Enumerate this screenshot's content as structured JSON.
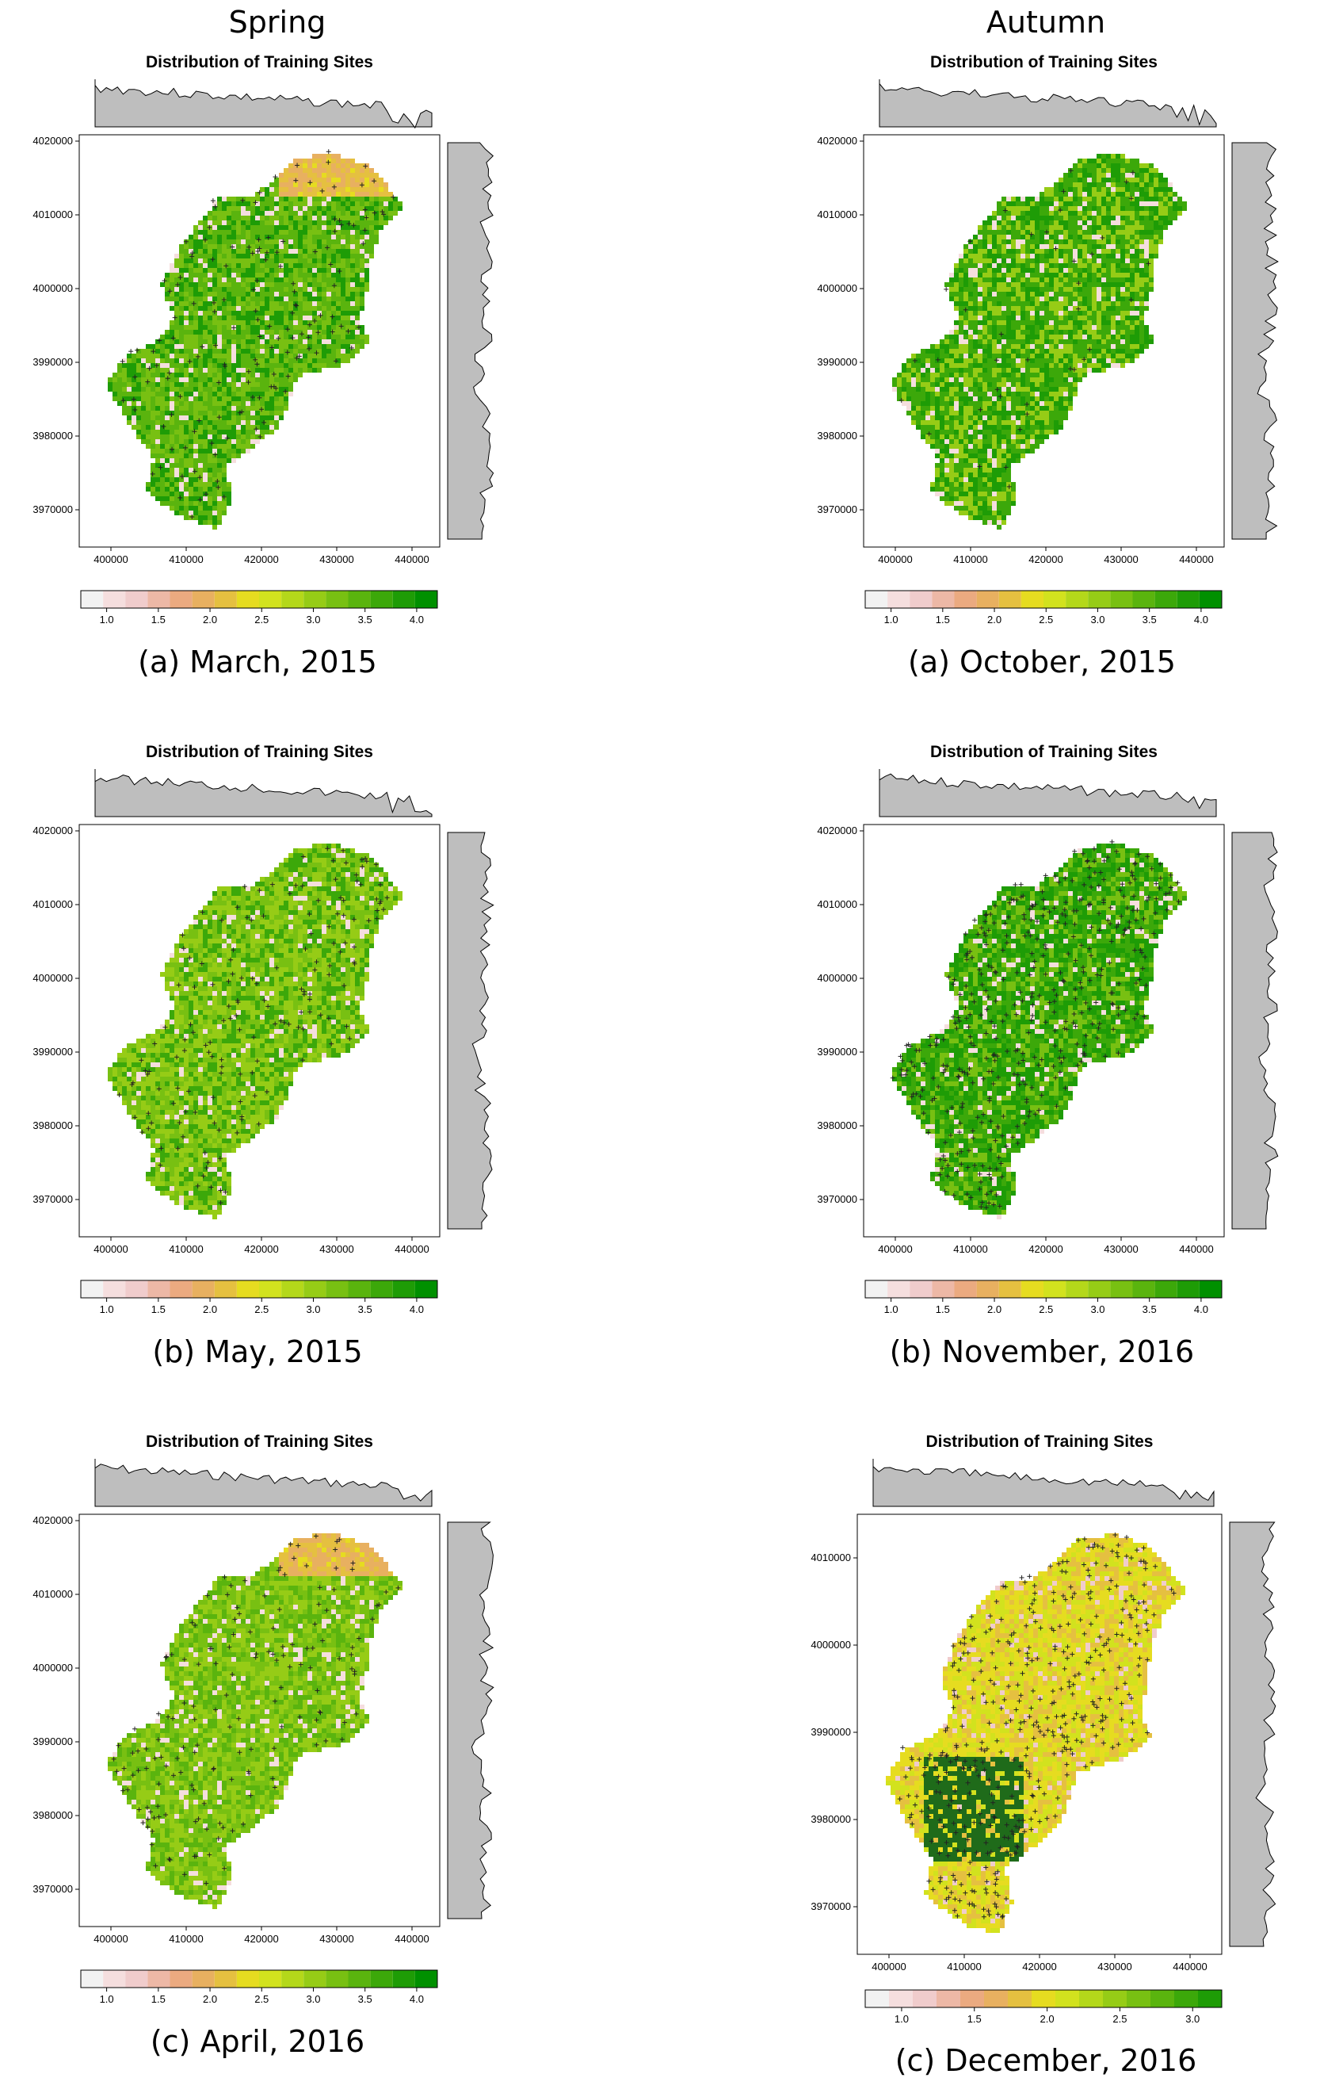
{
  "column_headings": [
    "Spring",
    "Autumn"
  ],
  "chart_data": [
    {
      "type": "heatmap",
      "title": "Distribution of Training Sites",
      "caption": "(a) March, 2015",
      "xticks": [
        "400000",
        "410000",
        "420000",
        "430000",
        "440000"
      ],
      "yticks": [
        "4020000",
        "4010000",
        "4000000",
        "3990000",
        "3980000",
        "3970000"
      ],
      "legend": {
        "ticks": [
          "1.0",
          "1.5",
          "2.0",
          "2.5",
          "3.0",
          "3.5",
          "4.0"
        ],
        "min": 0.75,
        "max": 4.2
      },
      "dominant_values": [
        3.6,
        3.2,
        4.0
      ],
      "highlight": "north-east",
      "marker": "+",
      "points_density": "medium"
    },
    {
      "type": "heatmap",
      "title": "Distribution of Training Sites",
      "caption": "(a) October, 2015",
      "xticks": [
        "400000",
        "410000",
        "420000",
        "430000",
        "440000"
      ],
      "yticks": [
        "4020000",
        "4010000",
        "4000000",
        "3990000",
        "3980000",
        "3970000"
      ],
      "legend": {
        "ticks": [
          "1.0",
          "1.5",
          "2.0",
          "2.5",
          "3.0",
          "3.5",
          "4.0"
        ],
        "min": 0.75,
        "max": 4.2
      },
      "dominant_values": [
        3.8,
        3.0,
        4.0
      ],
      "highlight": "none",
      "marker": "+",
      "points_density": "low"
    },
    {
      "type": "heatmap",
      "title": "Distribution of Training Sites",
      "caption": "(b) May, 2015",
      "xticks": [
        "400000",
        "410000",
        "420000",
        "430000",
        "440000"
      ],
      "yticks": [
        "4020000",
        "4010000",
        "4000000",
        "3990000",
        "3980000",
        "3970000"
      ],
      "legend": {
        "ticks": [
          "1.0",
          "1.5",
          "2.0",
          "2.5",
          "3.0",
          "3.5",
          "4.0"
        ],
        "min": 0.75,
        "max": 4.2
      },
      "dominant_values": [
        3.0,
        3.3,
        3.8
      ],
      "highlight": "none",
      "marker": "+",
      "points_density": "medium"
    },
    {
      "type": "heatmap",
      "title": "Distribution of Training Sites",
      "caption": "(b) November, 2016",
      "xticks": [
        "400000",
        "410000",
        "420000",
        "430000",
        "440000"
      ],
      "yticks": [
        "4020000",
        "4010000",
        "4000000",
        "3990000",
        "3980000",
        "3970000"
      ],
      "legend": {
        "ticks": [
          "1.0",
          "1.5",
          "2.0",
          "2.5",
          "3.0",
          "3.5",
          "4.0"
        ],
        "min": 0.75,
        "max": 4.2
      },
      "dominant_values": [
        4.0,
        3.8,
        3.2
      ],
      "highlight": "none",
      "marker": "+",
      "points_density": "high"
    },
    {
      "type": "heatmap",
      "title": "Distribution of Training Sites",
      "caption": "(c) April, 2016",
      "xticks": [
        "400000",
        "410000",
        "420000",
        "430000",
        "440000"
      ],
      "yticks": [
        "4020000",
        "4010000",
        "4000000",
        "3990000",
        "3980000",
        "3970000"
      ],
      "legend": {
        "ticks": [
          "1.0",
          "1.5",
          "2.0",
          "2.5",
          "3.0",
          "3.5",
          "4.0"
        ],
        "min": 0.75,
        "max": 4.2
      },
      "dominant_values": [
        3.0,
        3.2,
        3.6
      ],
      "highlight": "north-east",
      "marker": "+",
      "points_density": "medium"
    },
    {
      "type": "heatmap",
      "title": "Distribution of Training Sites",
      "caption": "(c) December, 2016",
      "xticks": [
        "400000",
        "410000",
        "420000",
        "430000",
        "440000"
      ],
      "yticks": [
        "4010000",
        "4000000",
        "3990000",
        "3980000",
        "3970000"
      ],
      "legend": {
        "ticks": [
          "1.0",
          "1.5",
          "2.0",
          "2.5",
          "3.0"
        ],
        "min": 0.75,
        "max": 3.2
      },
      "dominant_values": [
        1.9,
        2.0,
        1.8
      ],
      "highlight": "south-west-dark",
      "marker": "+",
      "points_density": "high"
    }
  ],
  "colors": {
    "histogram_fill": "#bebebe",
    "no_data": "#f2f2f2",
    "legend_scale": [
      "#f2f2f2",
      "#f5dede",
      "#f0cccc",
      "#edb8a6",
      "#ebaa80",
      "#e8b060",
      "#e5c040",
      "#e6dc20",
      "#d2e21e",
      "#b4d81a",
      "#96cc16",
      "#78c012",
      "#5ab40e",
      "#3ca80a",
      "#1e9c06",
      "#009000"
    ]
  }
}
